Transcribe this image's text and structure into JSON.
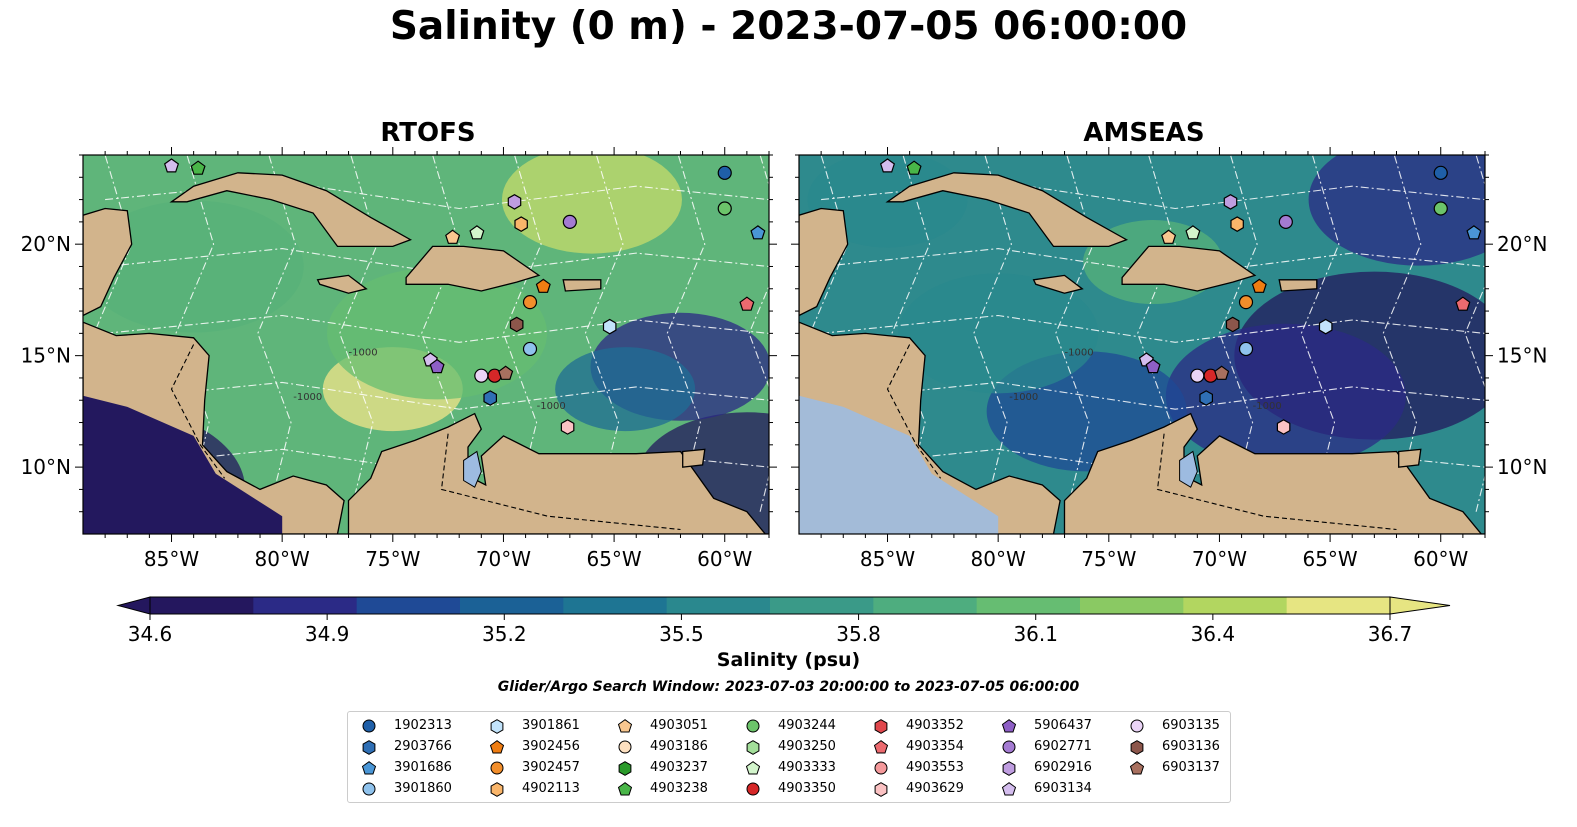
{
  "title": "Salinity (0 m) - 2023-07-05 06:00:00",
  "panels": [
    {
      "title": "RTOFS"
    },
    {
      "title": "AMSEAS"
    }
  ],
  "map": {
    "lon_range": [
      -89,
      -58
    ],
    "lat_range": [
      7,
      24
    ],
    "x_ticks": [
      "85°W",
      "80°W",
      "75°W",
      "70°W",
      "65°W",
      "60°W"
    ],
    "y_ticks": [
      "20°N",
      "15°N",
      "10°N"
    ],
    "contour_label": "-1000",
    "colors": {
      "land": "#d2b48c",
      "lake": "#9dbbe0",
      "water_low": "#23185e",
      "water_mid": "#3a8f88",
      "water_high": "#f2e68a"
    }
  },
  "colorbar": {
    "label": "Salinity (psu)",
    "ticks": [
      "34.6",
      "34.9",
      "35.2",
      "35.5",
      "35.8",
      "36.1",
      "36.4",
      "36.7"
    ],
    "range": [
      34.6,
      36.7
    ],
    "extend": "both",
    "colormap": [
      "#24175e",
      "#2b2a86",
      "#1f4a96",
      "#1b6196",
      "#1e7593",
      "#2a888e",
      "#3a9a88",
      "#4ead7f",
      "#66bd72",
      "#8ac963",
      "#b2d660",
      "#e6e582"
    ]
  },
  "search_window": "Glider/Argo Search Window: 2023-07-03 20:00:00 to 2023-07-05 06:00:00",
  "legend": [
    {
      "id": "1902313",
      "marker": "circle",
      "color": "#1f5fa8"
    },
    {
      "id": "2903766",
      "marker": "hexagon",
      "color": "#2f6fb5"
    },
    {
      "id": "3901686",
      "marker": "pentagon",
      "color": "#4a96d6"
    },
    {
      "id": "3901860",
      "marker": "circle",
      "color": "#8fc2ec"
    },
    {
      "id": "3901861",
      "marker": "hexagon",
      "color": "#c2e3fb"
    },
    {
      "id": "3902456",
      "marker": "pentagon",
      "color": "#ef7d12"
    },
    {
      "id": "3902457",
      "marker": "circle",
      "color": "#f28e2b"
    },
    {
      "id": "4902113",
      "marker": "hexagon",
      "color": "#f9b56a"
    },
    {
      "id": "4903051",
      "marker": "pentagon",
      "color": "#f9c78f"
    },
    {
      "id": "4903186",
      "marker": "circle",
      "color": "#fde0c0"
    },
    {
      "id": "4903237",
      "marker": "hexagon",
      "color": "#2a9a2a"
    },
    {
      "id": "4903238",
      "marker": "pentagon",
      "color": "#49b648"
    },
    {
      "id": "4903244",
      "marker": "circle",
      "color": "#6cc46a"
    },
    {
      "id": "4903250",
      "marker": "hexagon",
      "color": "#a3de9a"
    },
    {
      "id": "4903333",
      "marker": "pentagon",
      "color": "#d3f5cc"
    },
    {
      "id": "4903350",
      "marker": "circle",
      "color": "#d62728"
    },
    {
      "id": "4903352",
      "marker": "hexagon",
      "color": "#e0474c"
    },
    {
      "id": "4903354",
      "marker": "pentagon",
      "color": "#ec6a6f"
    },
    {
      "id": "4903553",
      "marker": "circle",
      "color": "#f4999b"
    },
    {
      "id": "4903629",
      "marker": "hexagon",
      "color": "#fbc2c3"
    },
    {
      "id": "5906437",
      "marker": "pentagon",
      "color": "#8e5fc6"
    },
    {
      "id": "6902771",
      "marker": "circle",
      "color": "#a47bd2"
    },
    {
      "id": "6902916",
      "marker": "hexagon",
      "color": "#bf9de0"
    },
    {
      "id": "6903134",
      "marker": "pentagon",
      "color": "#d4bdee"
    },
    {
      "id": "6903135",
      "marker": "circle",
      "color": "#ead4f6"
    },
    {
      "id": "6903136",
      "marker": "hexagon",
      "color": "#8c564b"
    },
    {
      "id": "6903137",
      "marker": "pentagon",
      "color": "#a8705f"
    }
  ],
  "observations": [
    {
      "id": "1902313",
      "lon": -60.0,
      "lat": 23.2
    },
    {
      "id": "4903244",
      "lon": -60.0,
      "lat": 21.6
    },
    {
      "id": "3901686",
      "lon": -58.5,
      "lat": 20.5
    },
    {
      "id": "4903354",
      "lon": -59.0,
      "lat": 17.3
    },
    {
      "id": "6903134",
      "lon": -85.0,
      "lat": 23.5
    },
    {
      "id": "4903238",
      "lon": -83.8,
      "lat": 23.4
    },
    {
      "id": "6902916",
      "lon": -69.5,
      "lat": 21.9
    },
    {
      "id": "6902771",
      "lon": -67.0,
      "lat": 21.0
    },
    {
      "id": "4902113",
      "lon": -69.2,
      "lat": 20.9
    },
    {
      "id": "4903051",
      "lon": -72.3,
      "lat": 20.3
    },
    {
      "id": "4903333",
      "lon": -71.2,
      "lat": 20.5
    },
    {
      "id": "3902456",
      "lon": -68.2,
      "lat": 18.1
    },
    {
      "id": "3902457",
      "lon": -68.8,
      "lat": 17.4
    },
    {
      "id": "6903136",
      "lon": -69.4,
      "lat": 16.4
    },
    {
      "id": "3901861",
      "lon": -65.2,
      "lat": 16.3
    },
    {
      "id": "3901860",
      "lon": -68.8,
      "lat": 15.3
    },
    {
      "id": "6903134",
      "lon": -73.3,
      "lat": 14.8
    },
    {
      "id": "5906437",
      "lon": -73.0,
      "lat": 14.5
    },
    {
      "id": "6903135",
      "lon": -71.0,
      "lat": 14.1
    },
    {
      "id": "4903350",
      "lon": -70.4,
      "lat": 14.1
    },
    {
      "id": "6903137",
      "lon": -69.9,
      "lat": 14.2
    },
    {
      "id": "2903766",
      "lon": -70.6,
      "lat": 13.1
    },
    {
      "id": "4903629",
      "lon": -67.1,
      "lat": 11.8
    }
  ]
}
